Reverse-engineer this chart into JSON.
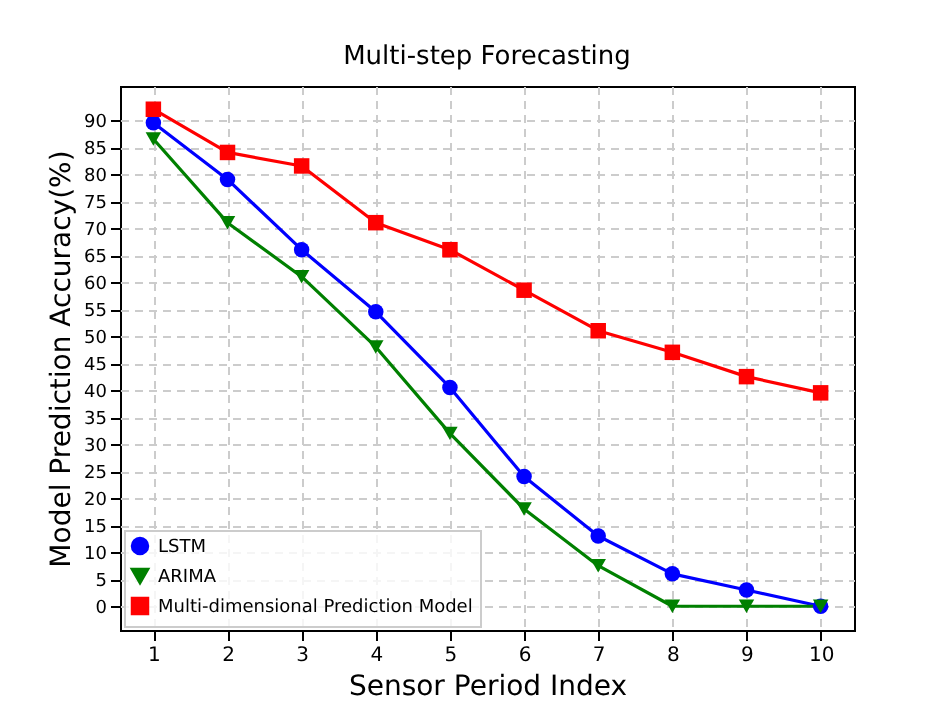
{
  "chart_data": {
    "type": "line",
    "title": "Multi-step Forecasting",
    "xlabel": "Sensor Period Index",
    "ylabel": "Model Prediction Accuracy(%)",
    "x": [
      1,
      2,
      3,
      4,
      5,
      6,
      7,
      8,
      9,
      10
    ],
    "series": [
      {
        "name": "LSTM",
        "color": "#0000ff",
        "marker": "circle",
        "values": [
          89.5,
          79,
          66,
          54.5,
          40.5,
          24,
          13,
          6,
          3,
          0
        ]
      },
      {
        "name": "ARIMA",
        "color": "#008000",
        "marker": "triangle",
        "values": [
          86.5,
          71,
          61,
          48,
          32,
          18,
          7.5,
          0,
          0,
          0
        ]
      },
      {
        "name": "Multi-dimensional Prediction Model",
        "color": "#ff0000",
        "marker": "square",
        "values": [
          92,
          84,
          81.5,
          71,
          66,
          58.5,
          51,
          47,
          42.5,
          39.5
        ]
      }
    ],
    "xlim": [
      0.55,
      10.45
    ],
    "xticks": [
      1,
      2,
      3,
      4,
      5,
      6,
      7,
      8,
      9,
      10
    ],
    "ylim": [
      -4.4,
      96.3
    ],
    "yticks": [
      0,
      5,
      10,
      15,
      20,
      25,
      30,
      35,
      40,
      45,
      50,
      55,
      60,
      65,
      70,
      75,
      80,
      85,
      90
    ],
    "grid": true,
    "legend": "bottom left",
    "line_style": "solid"
  }
}
